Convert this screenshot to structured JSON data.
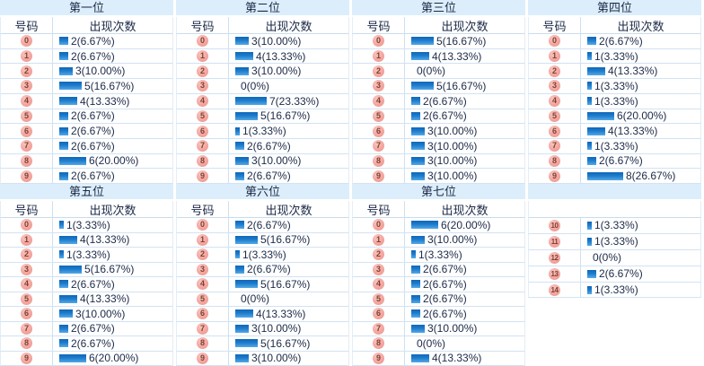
{
  "colors": {
    "title_band_bg": "#dceefb",
    "grid_border": "#d2e3f2",
    "bar_gradient_top": "#0f66b8",
    "bar_gradient_bottom": "#55a8e6",
    "number_badge_bg": "#f3a69e",
    "number_badge_text": "#7d4038",
    "text": "#1c2a47"
  },
  "column_headers": {
    "number": "号码",
    "count": "出现次数"
  },
  "chart_data": [
    {
      "type": "table",
      "title": "第一位",
      "columns": [
        "号码",
        "出现次数"
      ],
      "numbers": [
        0,
        1,
        2,
        3,
        4,
        5,
        6,
        7,
        8,
        9
      ],
      "counts": [
        2,
        2,
        3,
        5,
        4,
        2,
        2,
        2,
        6,
        2
      ],
      "labels": [
        "2(6.67%)",
        "2(6.67%)",
        "3(10.00%)",
        "5(16.67%)",
        "4(13.33%)",
        "2(6.67%)",
        "2(6.67%)",
        "2(6.67%)",
        "6(20.00%)",
        "2(6.67%)"
      ]
    },
    {
      "type": "table",
      "title": "第二位",
      "columns": [
        "号码",
        "出现次数"
      ],
      "numbers": [
        0,
        1,
        2,
        3,
        4,
        5,
        6,
        7,
        8,
        9
      ],
      "counts": [
        3,
        4,
        3,
        0,
        7,
        5,
        1,
        2,
        3,
        2
      ],
      "labels": [
        "3(10.00%)",
        "4(13.33%)",
        "3(10.00%)",
        "0(0%)",
        "7(23.33%)",
        "5(16.67%)",
        "1(3.33%)",
        "2(6.67%)",
        "3(10.00%)",
        "2(6.67%)"
      ]
    },
    {
      "type": "table",
      "title": "第三位",
      "columns": [
        "号码",
        "出现次数"
      ],
      "numbers": [
        0,
        1,
        2,
        3,
        4,
        5,
        6,
        7,
        8,
        9
      ],
      "counts": [
        5,
        4,
        0,
        5,
        2,
        2,
        3,
        3,
        3,
        3
      ],
      "labels": [
        "5(16.67%)",
        "4(13.33%)",
        "0(0%)",
        "5(16.67%)",
        "2(6.67%)",
        "2(6.67%)",
        "3(10.00%)",
        "3(10.00%)",
        "3(10.00%)",
        "3(10.00%)"
      ]
    },
    {
      "type": "table",
      "title": "第四位",
      "columns": [
        "号码",
        "出现次数"
      ],
      "numbers": [
        0,
        1,
        2,
        3,
        4,
        5,
        6,
        7,
        8,
        9
      ],
      "counts": [
        2,
        1,
        4,
        1,
        1,
        6,
        4,
        1,
        2,
        8
      ],
      "labels": [
        "2(6.67%)",
        "1(3.33%)",
        "4(13.33%)",
        "1(3.33%)",
        "1(3.33%)",
        "6(20.00%)",
        "4(13.33%)",
        "1(3.33%)",
        "2(6.67%)",
        "8(26.67%)"
      ]
    },
    {
      "type": "table",
      "title": "第五位",
      "columns": [
        "号码",
        "出现次数"
      ],
      "numbers": [
        0,
        1,
        2,
        3,
        4,
        5,
        6,
        7,
        8,
        9
      ],
      "counts": [
        1,
        4,
        1,
        5,
        2,
        4,
        3,
        2,
        2,
        6
      ],
      "labels": [
        "1(3.33%)",
        "4(13.33%)",
        "1(3.33%)",
        "5(16.67%)",
        "2(6.67%)",
        "4(13.33%)",
        "3(10.00%)",
        "2(6.67%)",
        "2(6.67%)",
        "6(20.00%)"
      ]
    },
    {
      "type": "table",
      "title": "第六位",
      "columns": [
        "号码",
        "出现次数"
      ],
      "numbers": [
        0,
        1,
        2,
        3,
        4,
        5,
        6,
        7,
        8,
        9
      ],
      "counts": [
        2,
        5,
        1,
        2,
        5,
        0,
        4,
        3,
        5,
        3
      ],
      "labels": [
        "2(6.67%)",
        "5(16.67%)",
        "1(3.33%)",
        "2(6.67%)",
        "5(16.67%)",
        "0(0%)",
        "4(13.33%)",
        "3(10.00%)",
        "5(16.67%)",
        "3(10.00%)"
      ]
    },
    {
      "type": "table",
      "title": "第七位",
      "columns": [
        "号码",
        "出现次数"
      ],
      "numbers": [
        0,
        1,
        2,
        3,
        4,
        5,
        6,
        7,
        8,
        9
      ],
      "counts": [
        6,
        3,
        1,
        2,
        2,
        2,
        2,
        3,
        0,
        4
      ],
      "labels": [
        "6(20.00%)",
        "3(10.00%)",
        "1(3.33%)",
        "2(6.67%)",
        "2(6.67%)",
        "2(6.67%)",
        "2(6.67%)",
        "3(10.00%)",
        "0(0%)",
        "4(13.33%)"
      ]
    },
    {
      "type": "table",
      "title": "",
      "columns": [
        "",
        ""
      ],
      "numbers": [
        10,
        11,
        12,
        13,
        14
      ],
      "counts": [
        1,
        1,
        0,
        2,
        1
      ],
      "labels": [
        "1(3.33%)",
        "1(3.33%)",
        "0(0%)",
        "2(6.67%)",
        "1(3.33%)"
      ]
    }
  ]
}
